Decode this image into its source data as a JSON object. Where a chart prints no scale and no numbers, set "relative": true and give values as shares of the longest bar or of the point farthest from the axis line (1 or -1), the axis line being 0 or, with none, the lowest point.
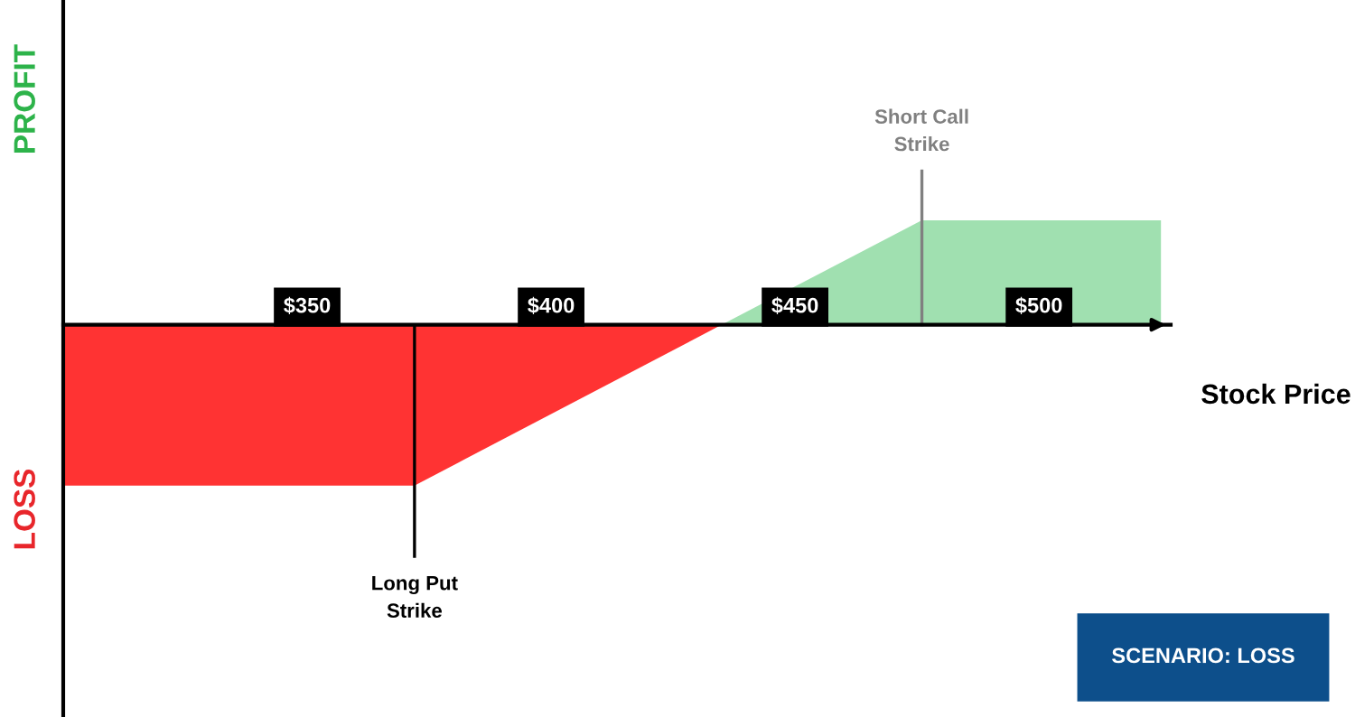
{
  "chart_data": {
    "type": "area",
    "relative": true,
    "xlabel": "Stock Price",
    "xlim": [
      300,
      527
    ],
    "xticks": [
      {
        "value": 350,
        "label": "$350"
      },
      {
        "value": 400,
        "label": "$400"
      },
      {
        "value": 450,
        "label": "$450"
      },
      {
        "value": 500,
        "label": "$500"
      }
    ],
    "series": [
      {
        "color": "#ff3333",
        "x": [
          300,
          372,
          435
        ],
        "values": [
          -1,
          -1,
          0
        ]
      },
      {
        "color": "#a0e0b0",
        "x": [
          435,
          476,
          525
        ],
        "values": [
          0,
          0.65,
          0.65
        ]
      }
    ],
    "ref_lines": [
      {
        "axis": "x",
        "value": 372,
        "label": "Long Put\nStrike",
        "color": "#000000"
      },
      {
        "axis": "x",
        "value": 476,
        "label": "Short Call\nStrike",
        "color": "#808080"
      }
    ],
    "annotations": [
      "PROFIT",
      "LOSS",
      "SCENARIO: LOSS"
    ],
    "grid": false
  }
}
